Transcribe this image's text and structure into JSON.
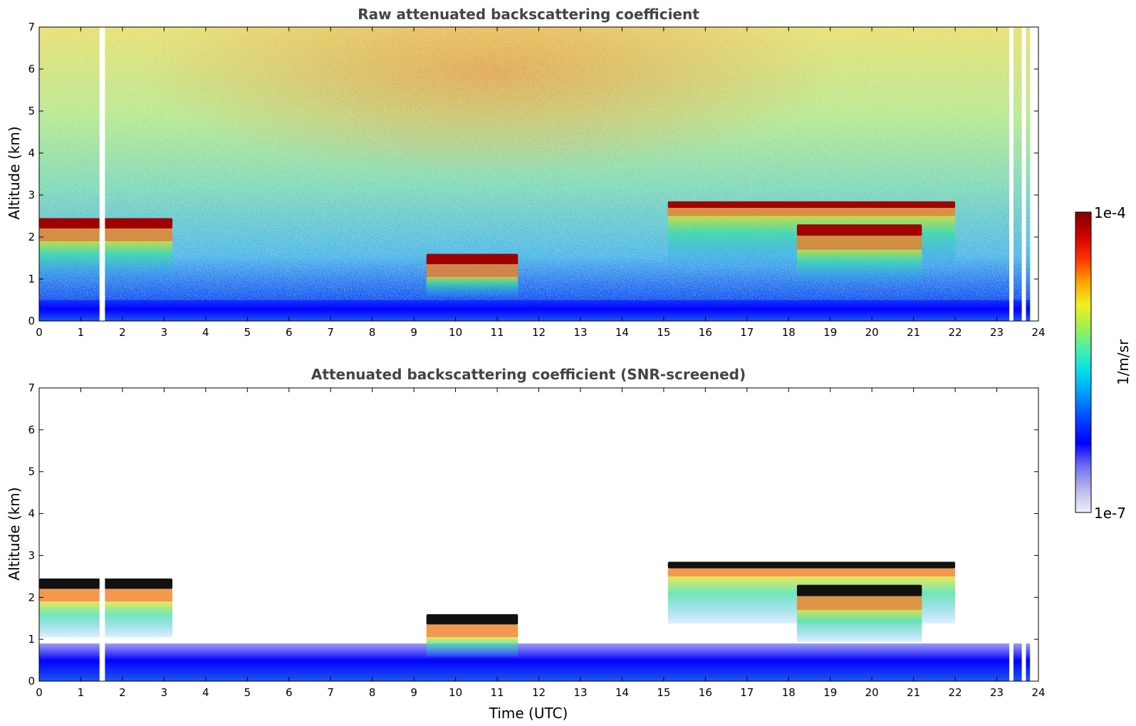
{
  "figure": {
    "colorbar": {
      "label": "1/m/sr",
      "max_label": "1e-4",
      "min_label": "1e-7",
      "scale": "log",
      "colormap": "jet",
      "range": [
        1e-07,
        0.0001
      ],
      "stops": [
        "#f0f0fa",
        "#b8b8ea",
        "#6f6ff0",
        "#0000ff",
        "#0040ff",
        "#0090ff",
        "#00d8f0",
        "#40f0b0",
        "#a0f050",
        "#f0f020",
        "#ffa000",
        "#ff3000",
        "#cc0000",
        "#800000"
      ]
    }
  },
  "chart_data": [
    {
      "type": "heatmap",
      "title": "Raw attenuated backscattering coefficient",
      "xlabel": "",
      "ylabel": "Altitude (km)",
      "xlim": [
        0,
        24
      ],
      "ylim": [
        0,
        7
      ],
      "x_ticks": [
        "0",
        "1",
        "2",
        "3",
        "4",
        "5",
        "6",
        "7",
        "8",
        "9",
        "10",
        "11",
        "12",
        "13",
        "14",
        "15",
        "16",
        "17",
        "18",
        "19",
        "20",
        "21",
        "22",
        "23",
        "24"
      ],
      "y_ticks": [
        "0",
        "1",
        "2",
        "3",
        "4",
        "5",
        "6",
        "7"
      ],
      "grid": false,
      "data_gaps_utc": [
        [
          1.45,
          1.58
        ],
        [
          23.3,
          23.4
        ],
        [
          23.6,
          23.7
        ],
        [
          23.8,
          24.0
        ]
      ],
      "features": [
        {
          "kind": "boundary_layer",
          "t_start": 0,
          "t_end": 23.8,
          "alt_top_km": 0.5
        },
        {
          "kind": "cloud_layer",
          "t_start": 0,
          "t_end": 3.2,
          "alt_base_km": 1.9,
          "alt_top_km": 2.45
        },
        {
          "kind": "cloud_layer",
          "t_start": 9.3,
          "t_end": 11.5,
          "alt_base_km": 1.05,
          "alt_top_km": 1.6
        },
        {
          "kind": "cloud_layer",
          "t_start": 15.1,
          "t_end": 22.0,
          "alt_base_km": 2.5,
          "alt_top_km": 2.85
        },
        {
          "kind": "cloud_layer",
          "t_start": 18.2,
          "t_end": 21.2,
          "alt_base_km": 1.7,
          "alt_top_km": 2.3
        }
      ]
    },
    {
      "type": "heatmap",
      "title": "Attenuated backscattering coefficient (SNR-screened)",
      "xlabel": "Time (UTC)",
      "ylabel": "Altitude (km)",
      "xlim": [
        0,
        24
      ],
      "ylim": [
        0,
        7
      ],
      "x_ticks": [
        "0",
        "1",
        "2",
        "3",
        "4",
        "5",
        "6",
        "7",
        "8",
        "9",
        "10",
        "11",
        "12",
        "13",
        "14",
        "15",
        "16",
        "17",
        "18",
        "19",
        "20",
        "21",
        "22",
        "23",
        "24"
      ],
      "y_ticks": [
        "0",
        "1",
        "2",
        "3",
        "4",
        "5",
        "6",
        "7"
      ],
      "grid": false,
      "data_gaps_utc": [
        [
          1.45,
          1.58
        ],
        [
          23.3,
          23.4
        ],
        [
          23.6,
          23.7
        ],
        [
          23.8,
          24.0
        ]
      ],
      "features": [
        {
          "kind": "boundary_layer",
          "t_start": 0,
          "t_end": 23.8,
          "alt_top_km": 0.9
        },
        {
          "kind": "cloud_layer",
          "t_start": 0,
          "t_end": 3.2,
          "alt_base_km": 1.9,
          "alt_top_km": 2.45
        },
        {
          "kind": "cloud_layer",
          "t_start": 9.3,
          "t_end": 11.5,
          "alt_base_km": 1.05,
          "alt_top_km": 1.6
        },
        {
          "kind": "cloud_layer",
          "t_start": 15.1,
          "t_end": 22.0,
          "alt_base_km": 2.5,
          "alt_top_km": 2.85
        },
        {
          "kind": "cloud_layer",
          "t_start": 18.2,
          "t_end": 21.2,
          "alt_base_km": 1.7,
          "alt_top_km": 2.3
        }
      ]
    }
  ]
}
